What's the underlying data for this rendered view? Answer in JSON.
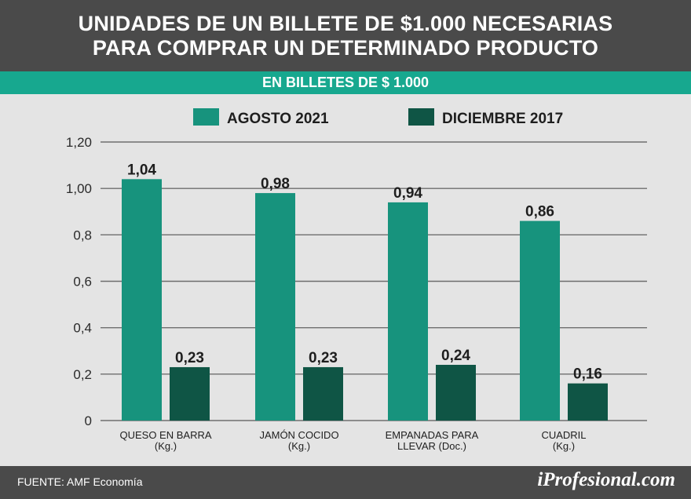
{
  "header": {
    "title_line1": "UNIDADES DE UN BILLETE DE $1.000 NECESARIAS",
    "title_line2": "PARA COMPRAR UN DETERMINADO PRODUCTO",
    "subtitle": "EN BILLETES DE $ 1.000"
  },
  "footer": {
    "source": "FUENTE: AMF Economía",
    "brand": "iProfesional.com"
  },
  "colors": {
    "agosto_2021": "#17937d",
    "diciembre_2017": "#0f5545",
    "gridline": "#6e6e6e",
    "header_bg": "#4a4a4a",
    "subheader_bg": "#17a88f"
  },
  "chart_data": {
    "type": "bar",
    "title": "UNIDADES DE UN BILLETE DE $1.000 NECESARIAS PARA COMPRAR UN DETERMINADO PRODUCTO",
    "subtitle": "EN BILLETES DE $ 1.000",
    "legend_position": "top",
    "grid": true,
    "ylim": [
      0,
      1.2
    ],
    "yticks": [
      "0",
      "0,2",
      "0,4",
      "0,6",
      "0,8",
      "1,00",
      "1,20"
    ],
    "categories": [
      [
        "QUESO EN BARRA",
        "(Kg.)"
      ],
      [
        "JAMÓN COCIDO",
        "(Kg.)"
      ],
      [
        "EMPANADAS PARA",
        "LLEVAR (Doc.)"
      ],
      [
        "CUADRIL",
        "(Kg.)"
      ]
    ],
    "series": [
      {
        "name": "AGOSTO 2021",
        "values": [
          1.04,
          0.98,
          0.94,
          0.86
        ],
        "labels": [
          "1,04",
          "0,98",
          "0,94",
          "0,86"
        ]
      },
      {
        "name": "DICIEMBRE 2017",
        "values": [
          0.23,
          0.23,
          0.24,
          0.16
        ],
        "labels": [
          "0,23",
          "0,23",
          "0,24",
          "0,16"
        ]
      }
    ]
  }
}
